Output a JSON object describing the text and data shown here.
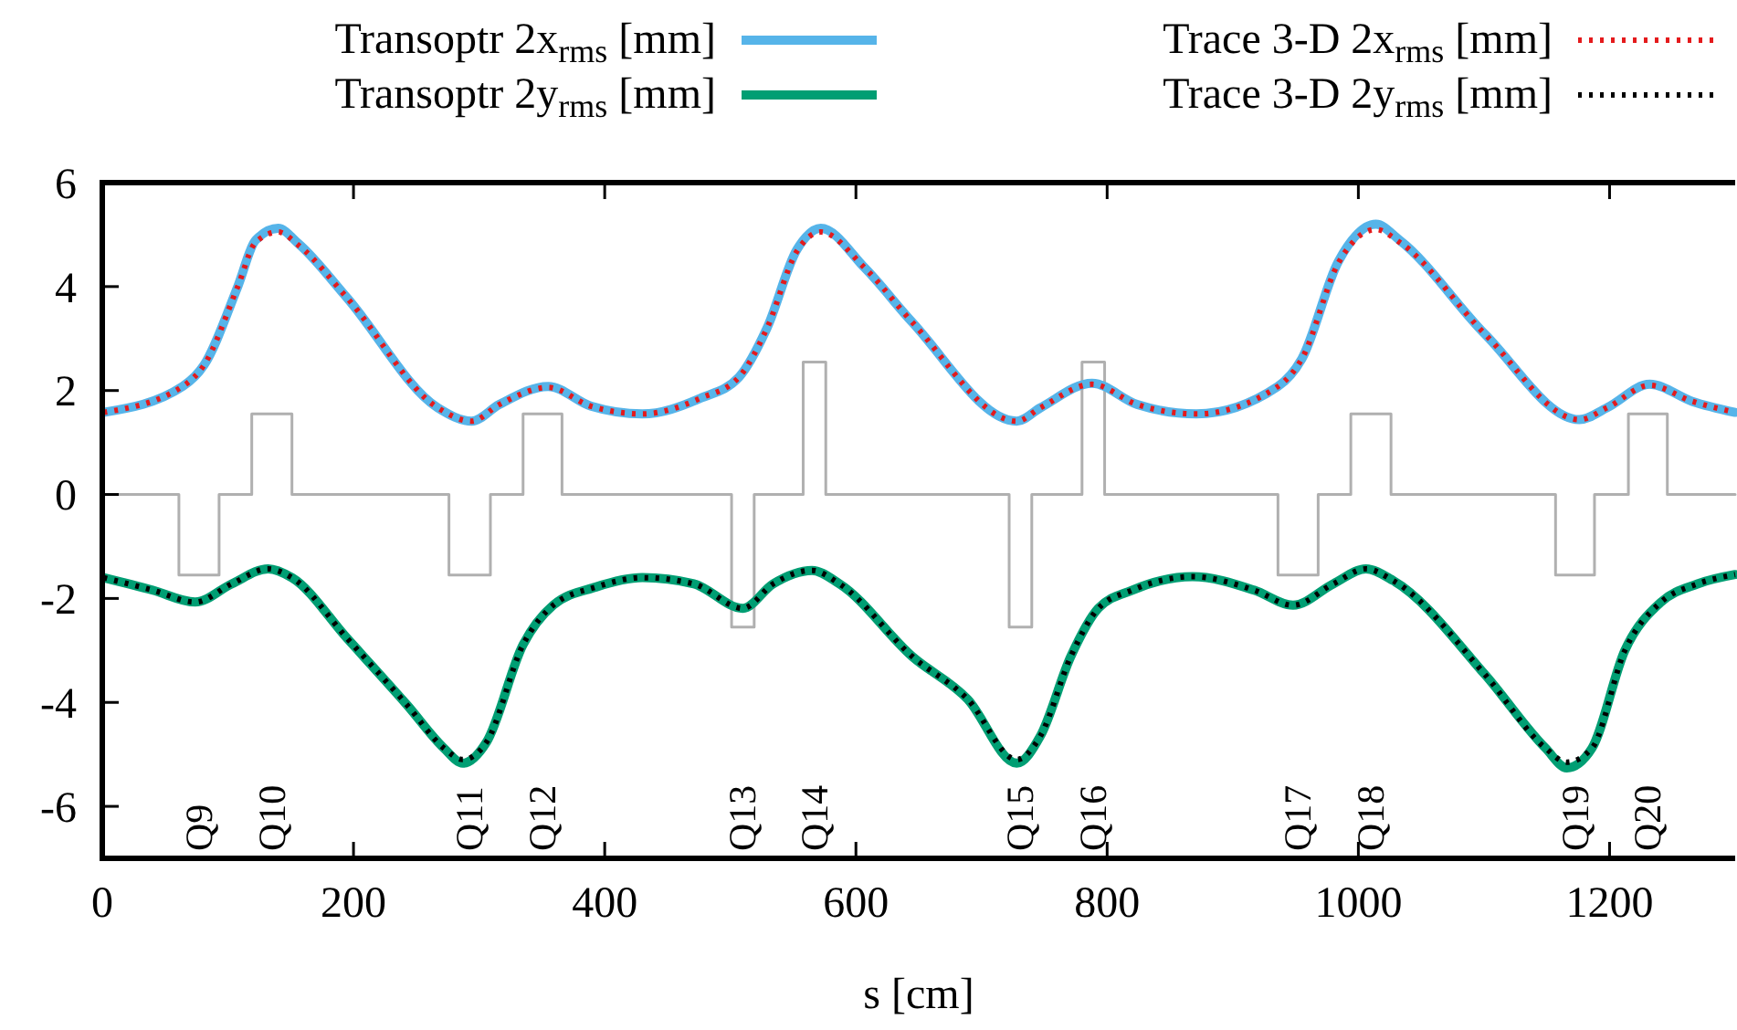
{
  "chart_data": {
    "type": "line",
    "xlabel": "s [cm]",
    "xlim": [
      0,
      1300
    ],
    "xticks": [
      0,
      200,
      400,
      600,
      800,
      1000,
      1200
    ],
    "ylim": [
      -7,
      6
    ],
    "yticks": [
      -6,
      -4,
      -2,
      0,
      2,
      4,
      6
    ],
    "grid": false,
    "legend": "top",
    "series": [
      {
        "type": "step",
        "color": "#b0b0b0",
        "line_style": "solid",
        "x": [
          0,
          61,
          93,
          119,
          151,
          276,
          309,
          335,
          366,
          501,
          519,
          558,
          576,
          722,
          740,
          780,
          798,
          936,
          968,
          994,
          1026,
          1157,
          1188,
          1215,
          1246,
          1300
        ],
        "values": [
          0,
          -1.55,
          0,
          1.55,
          0,
          -1.55,
          0,
          1.55,
          0,
          -2.55,
          0,
          2.55,
          0,
          -2.55,
          0,
          2.55,
          0,
          -1.55,
          0,
          1.55,
          0,
          -1.55,
          0,
          1.55,
          0,
          0
        ]
      },
      {
        "name": "Transoptr 2x$_{rms}$ [mm]",
        "color": "#56b4e9",
        "line_style": "solid",
        "x": [
          1,
          64,
          81,
          108,
          122,
          140,
          156,
          195,
          267,
          294,
          316,
          355,
          389,
          430,
          476,
          507,
          529,
          553,
          572,
          607,
          645,
          728,
          747,
          788,
          824,
          871,
          936,
          955,
          984,
          1014,
          1033,
          1101,
          1176,
          1198,
          1232,
          1266,
          1300
        ],
        "values": [
          1.58,
          2.08,
          2.49,
          4.01,
          4.89,
          5.12,
          4.83,
          3.78,
          1.67,
          1.41,
          1.73,
          2.08,
          1.7,
          1.55,
          1.85,
          2.26,
          3.19,
          4.71,
          5.12,
          4.36,
          3.31,
          1.41,
          1.67,
          2.14,
          1.73,
          1.55,
          2.08,
          2.61,
          4.48,
          5.2,
          4.89,
          3.08,
          1.44,
          1.67,
          2.12,
          1.79,
          1.58
        ]
      },
      {
        "name": "Transoptr 2y$_{rms}$ [mm]",
        "color": "#009e73",
        "line_style": "solid",
        "x": [
          1,
          40,
          74,
          103,
          132,
          151,
          195,
          243,
          272,
          287,
          306,
          335,
          359,
          393,
          430,
          471,
          510,
          534,
          565,
          587,
          645,
          689,
          728,
          747,
          771,
          793,
          820,
          868,
          917,
          948,
          980,
          1006,
          1028,
          1101,
          1149,
          1166,
          1186,
          1212,
          1241,
          1270,
          1300
        ],
        "values": [
          -1.6,
          -1.84,
          -2.07,
          -1.72,
          -1.43,
          -1.6,
          -2.77,
          -4.06,
          -4.88,
          -5.17,
          -4.76,
          -2.89,
          -2.13,
          -1.78,
          -1.6,
          -1.72,
          -2.19,
          -1.72,
          -1.46,
          -1.72,
          -3.12,
          -3.94,
          -5.17,
          -4.64,
          -3.12,
          -2.19,
          -1.84,
          -1.58,
          -1.84,
          -2.13,
          -1.72,
          -1.43,
          -1.66,
          -3.47,
          -4.88,
          -5.26,
          -4.88,
          -3.01,
          -2.07,
          -1.72,
          -1.54
        ]
      },
      {
        "name": "Trace 3-D 2x$_{rms}$ [mm]",
        "color": "#e41a1c",
        "line_style": "dotted",
        "x": [
          1,
          64,
          81,
          108,
          122,
          140,
          156,
          195,
          267,
          294,
          316,
          355,
          389,
          430,
          476,
          507,
          529,
          553,
          572,
          607,
          645,
          728,
          747,
          788,
          824,
          871,
          936,
          955,
          984,
          1014,
          1033,
          1101,
          1176,
          1198,
          1232,
          1266,
          1300
        ],
        "values": [
          1.58,
          2.08,
          2.49,
          4.01,
          4.85,
          5.05,
          4.8,
          3.78,
          1.67,
          1.41,
          1.73,
          2.06,
          1.7,
          1.55,
          1.85,
          2.26,
          3.19,
          4.68,
          5.05,
          4.36,
          3.31,
          1.41,
          1.67,
          2.12,
          1.73,
          1.55,
          2.08,
          2.61,
          4.45,
          5.1,
          4.85,
          3.08,
          1.44,
          1.67,
          2.1,
          1.79,
          1.58
        ]
      },
      {
        "name": "Trace 3-D 2y$_{rms}$ [mm]",
        "color": "#000000",
        "line_style": "dotted",
        "x": [
          1,
          40,
          74,
          103,
          132,
          151,
          195,
          243,
          272,
          287,
          306,
          335,
          359,
          393,
          430,
          471,
          510,
          534,
          565,
          587,
          645,
          689,
          728,
          747,
          771,
          793,
          820,
          868,
          917,
          948,
          980,
          1006,
          1028,
          1101,
          1149,
          1166,
          1186,
          1212,
          1241,
          1270,
          1300
        ],
        "values": [
          -1.6,
          -1.84,
          -2.07,
          -1.72,
          -1.43,
          -1.6,
          -2.77,
          -4.06,
          -4.88,
          -5.1,
          -4.76,
          -2.89,
          -2.13,
          -1.78,
          -1.6,
          -1.72,
          -2.19,
          -1.72,
          -1.46,
          -1.72,
          -3.12,
          -3.94,
          -5.1,
          -4.64,
          -3.12,
          -2.19,
          -1.84,
          -1.58,
          -1.84,
          -2.13,
          -1.72,
          -1.43,
          -1.66,
          -3.47,
          -4.88,
          -5.15,
          -4.88,
          -3.01,
          -2.07,
          -1.72,
          -1.54
        ]
      }
    ],
    "annotations": [
      "Q9",
      "Q10",
      "Q11",
      "Q12",
      "Q13",
      "Q14",
      "Q15",
      "Q16",
      "Q17",
      "Q18",
      "Q19",
      "Q20"
    ]
  }
}
